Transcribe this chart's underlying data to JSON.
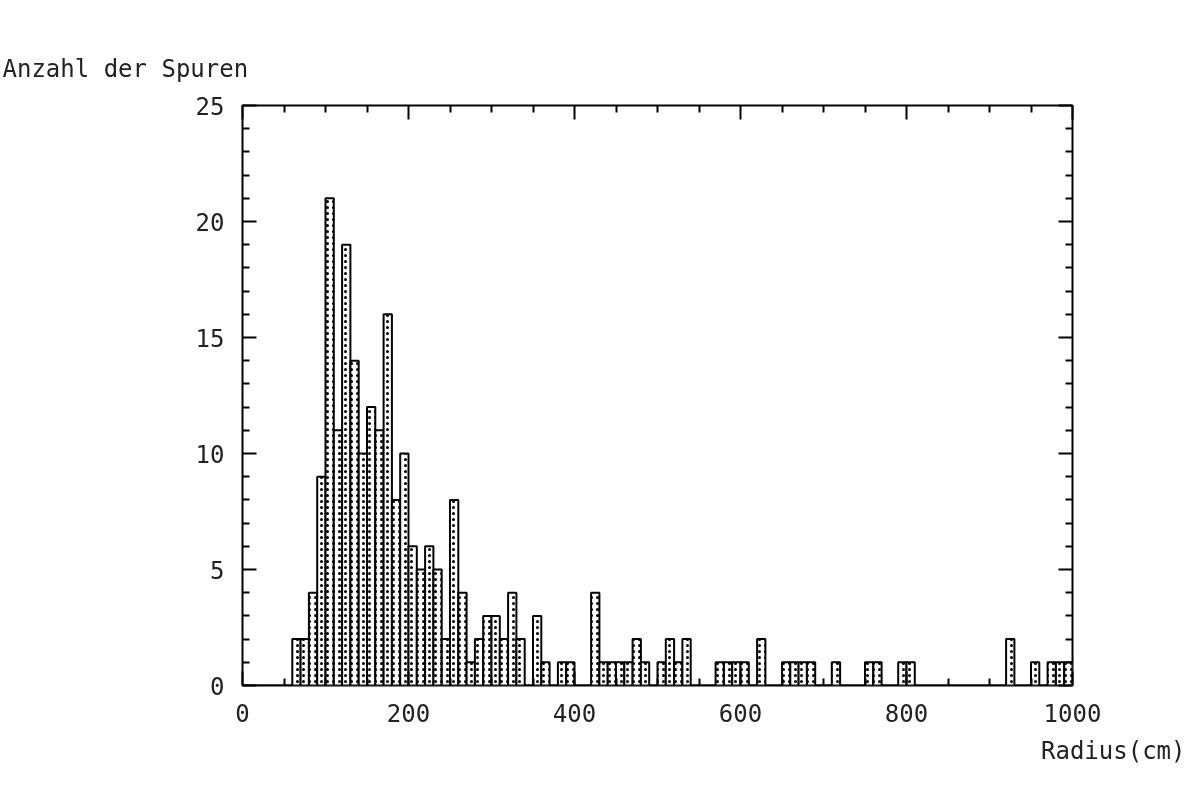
{
  "chart_data": {
    "type": "histogram",
    "xlabel": "Radius(cm)",
    "ylabel": "Anzahl der Spuren",
    "bins": [
      0,
      10,
      20,
      30,
      40,
      50,
      60,
      70,
      80,
      90,
      100,
      110,
      120,
      130,
      140,
      150,
      160,
      170,
      180,
      190,
      200,
      210,
      220,
      230,
      240,
      250,
      260,
      270,
      280,
      290,
      300,
      310,
      320,
      330,
      340,
      350,
      360,
      370,
      380,
      390,
      400,
      410,
      420,
      430,
      440,
      450,
      460,
      470,
      480,
      490,
      500,
      510,
      520,
      530,
      540,
      550,
      560,
      570,
      580,
      590,
      600,
      610,
      620,
      630,
      640,
      650,
      660,
      670,
      680,
      690,
      700,
      710,
      720,
      730,
      740,
      750,
      760,
      770,
      780,
      790,
      800,
      810,
      820,
      830,
      840,
      850,
      860,
      870,
      880,
      890,
      900,
      910,
      920,
      930,
      940,
      950,
      960,
      970,
      980,
      990,
      1000
    ],
    "values": [
      0,
      0,
      0,
      0,
      0,
      0,
      2,
      2,
      4,
      9,
      21,
      11,
      19,
      14,
      10,
      12,
      11,
      16,
      8,
      10,
      6,
      5,
      6,
      5,
      2,
      8,
      4,
      1,
      2,
      3,
      3,
      2,
      4,
      2,
      0,
      3,
      1,
      0,
      1,
      1,
      0,
      0,
      4,
      1,
      1,
      1,
      1,
      2,
      1,
      0,
      1,
      2,
      1,
      2,
      0,
      0,
      0,
      1,
      1,
      1,
      1,
      0,
      2,
      0,
      0,
      1,
      1,
      1,
      1,
      0,
      0,
      1,
      0,
      0,
      0,
      1,
      1,
      0,
      0,
      1,
      1,
      0,
      0,
      0,
      0,
      0,
      0,
      0,
      0,
      0,
      0,
      0,
      2,
      0,
      0,
      1,
      0,
      1,
      1,
      1
    ],
    "color": "#000000",
    "xlim": [
      0,
      1000
    ],
    "ylim": [
      0,
      25
    ],
    "xticks": [
      0,
      200,
      400,
      600,
      800,
      1000
    ],
    "yticks": [
      0,
      5,
      10,
      15,
      20,
      25
    ],
    "grid": false
  }
}
